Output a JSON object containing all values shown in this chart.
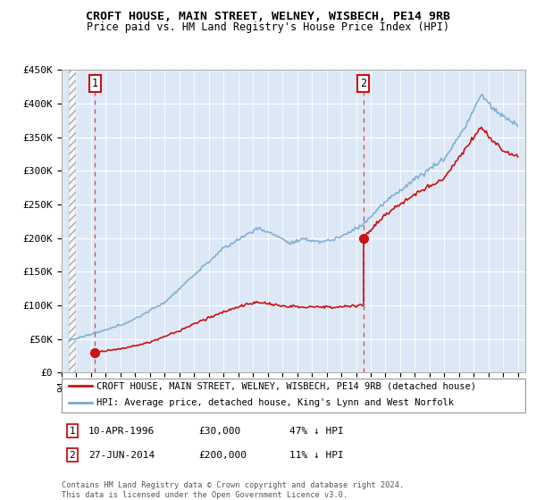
{
  "title": "CROFT HOUSE, MAIN STREET, WELNEY, WISBECH, PE14 9RB",
  "subtitle": "Price paid vs. HM Land Registry's House Price Index (HPI)",
  "ylim": [
    0,
    450000
  ],
  "yticks": [
    0,
    50000,
    100000,
    150000,
    200000,
    250000,
    300000,
    350000,
    400000,
    450000
  ],
  "ytick_labels": [
    "£0",
    "£50K",
    "£100K",
    "£150K",
    "£200K",
    "£250K",
    "£300K",
    "£350K",
    "£400K",
    "£450K"
  ],
  "xlim_start": 1994.5,
  "xlim_end": 2025.5,
  "hpi_color": "#7aaad0",
  "price_color": "#cc1111",
  "sale_points": [
    {
      "year": 1996.27,
      "price": 30000,
      "label": "1"
    },
    {
      "year": 2014.49,
      "price": 200000,
      "label": "2"
    }
  ],
  "legend_line1": "CROFT HOUSE, MAIN STREET, WELNEY, WISBECH, PE14 9RB (detached house)",
  "legend_line2": "HPI: Average price, detached house, King's Lynn and West Norfolk",
  "table_rows": [
    {
      "num": "1",
      "date": "10-APR-1996",
      "price": "£30,000",
      "hpi": "47% ↓ HPI"
    },
    {
      "num": "2",
      "date": "27-JUN-2014",
      "price": "£200,000",
      "hpi": "11% ↓ HPI"
    }
  ],
  "footnote": "Contains HM Land Registry data © Crown copyright and database right 2024.\nThis data is licensed under the Open Government Licence v3.0.",
  "background_color": "#ffffff",
  "plot_bg_color": "#dce8f5"
}
